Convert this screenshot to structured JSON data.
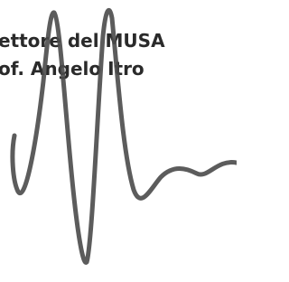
{
  "lines": [
    "ettore del MUSA",
    "of. Angelo Itro"
  ]
}
